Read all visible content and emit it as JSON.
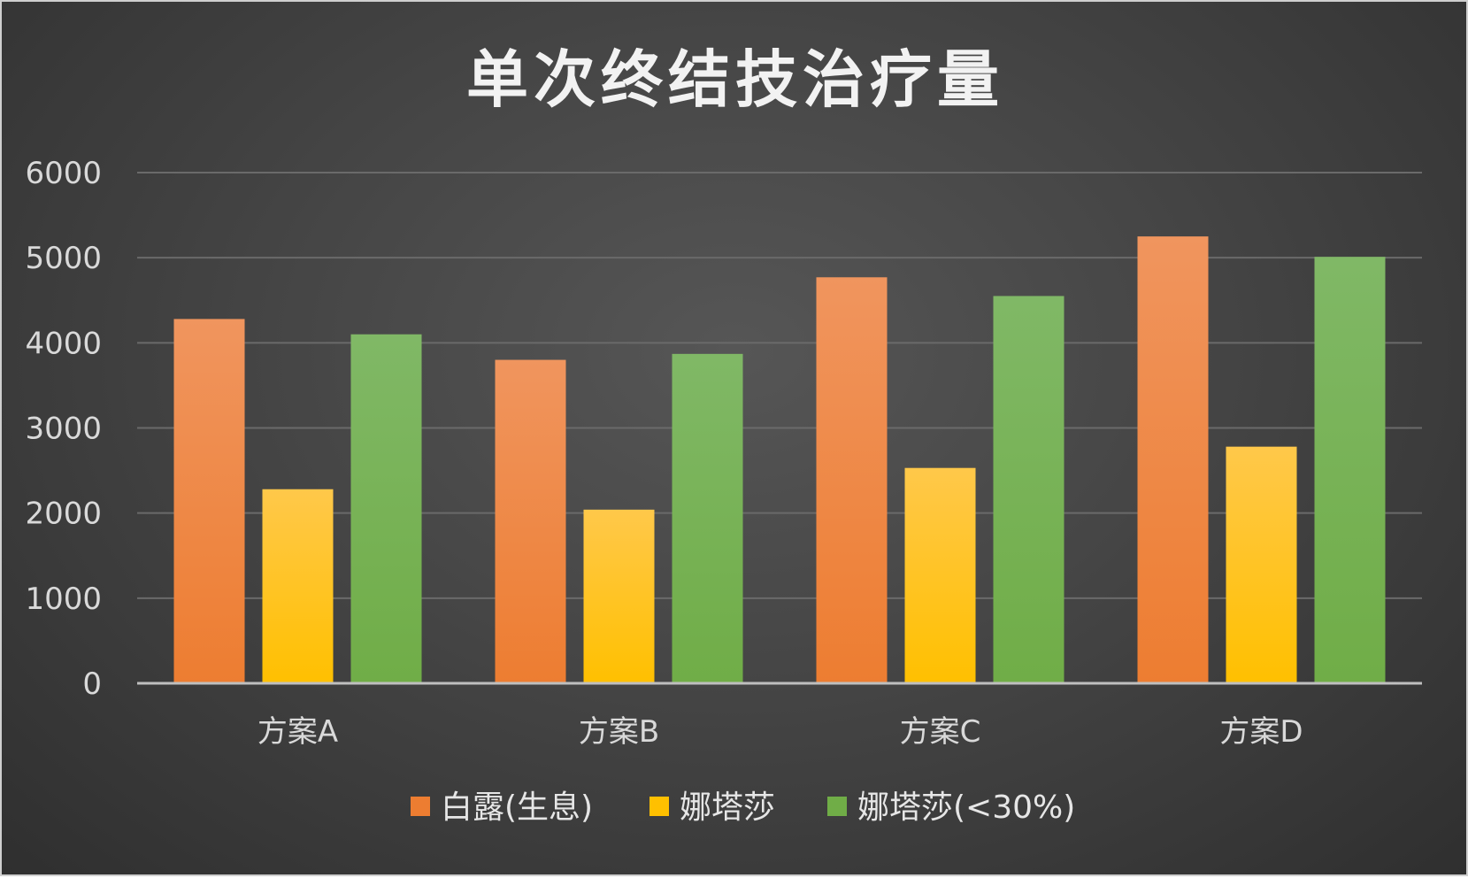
{
  "chart_data": {
    "type": "bar",
    "title": "单次终结技治疗量",
    "categories": [
      "方案A",
      "方案B",
      "方案C",
      "方案D"
    ],
    "series": [
      {
        "name": "白露(生息)",
        "values": [
          4280,
          3800,
          4770,
          5250
        ],
        "color": "#ED7D31",
        "color_light": "#F0955E"
      },
      {
        "name": "娜塔莎",
        "values": [
          2280,
          2040,
          2530,
          2780
        ],
        "color": "#FFC000",
        "color_light": "#FFC84A"
      },
      {
        "name": "娜塔莎(<30%)",
        "values": [
          4100,
          3870,
          4550,
          5010
        ],
        "color": "#70AD47",
        "color_light": "#80B866"
      }
    ],
    "ylim": [
      0,
      6000
    ],
    "yticks": [
      0,
      1000,
      2000,
      3000,
      4000,
      5000,
      6000
    ],
    "xlabel": "",
    "ylabel": "",
    "grid": true,
    "legend": "bottom"
  }
}
